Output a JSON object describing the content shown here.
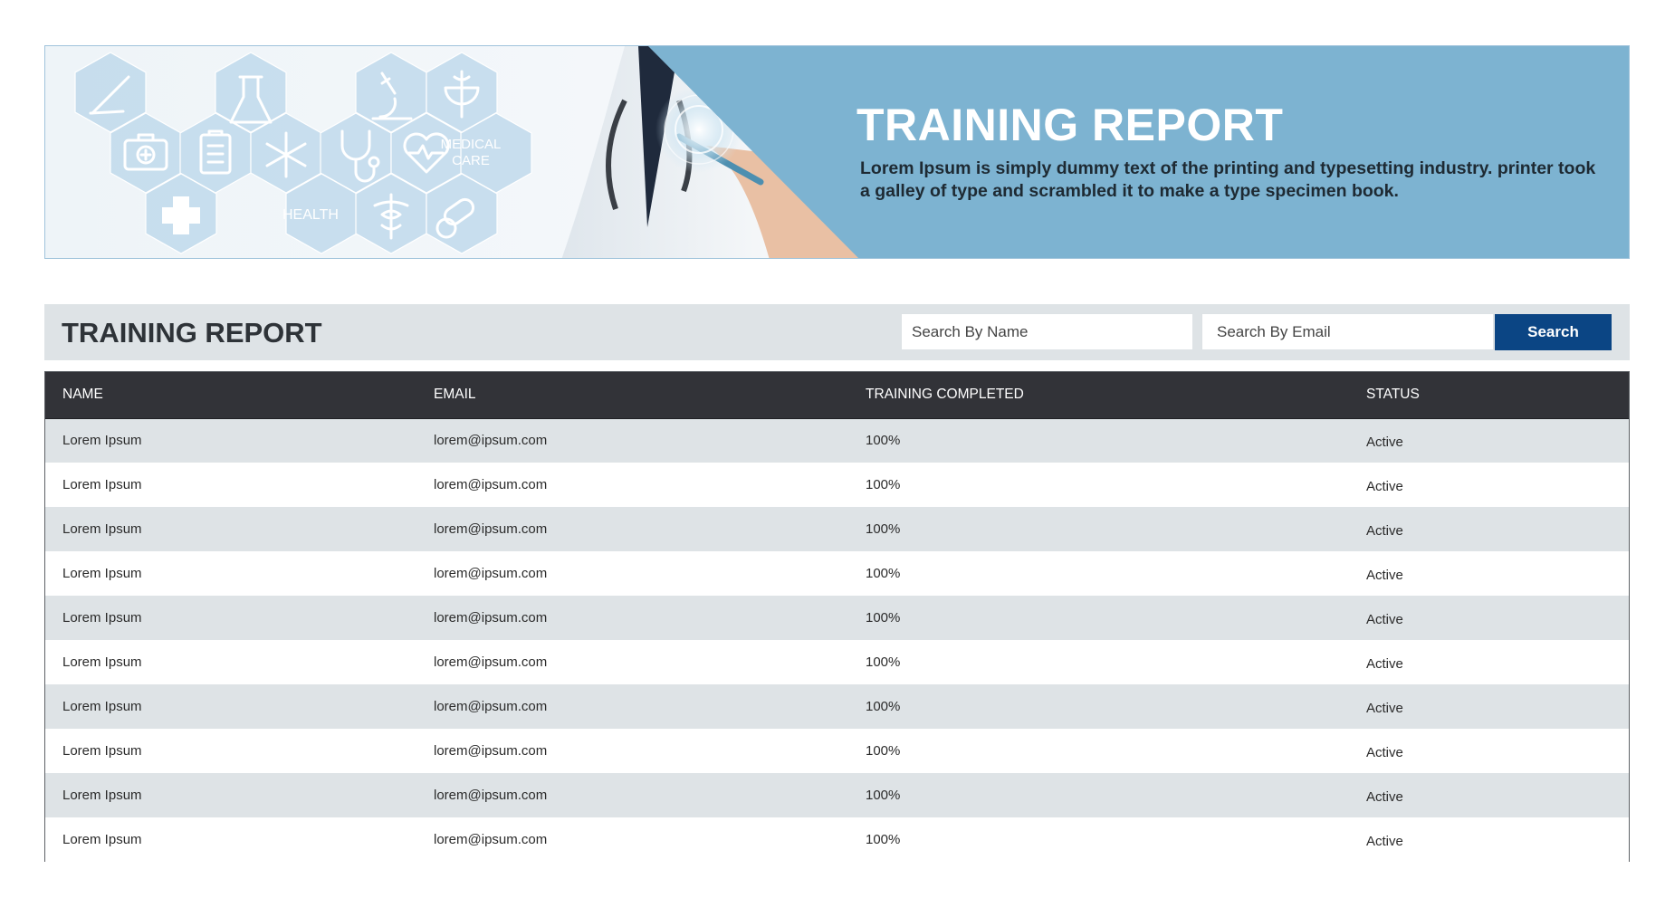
{
  "banner": {
    "title": "TRAINING REPORT",
    "description": "Lorem Ipsum is simply dummy text of the printing and typesetting industry. printer took a galley of type and scrambled it to make a type specimen book.",
    "hex_labels": {
      "health": "HEALTH",
      "medical": "MEDICAL",
      "care": "CARE"
    },
    "accent_color": "#7db3d1"
  },
  "report": {
    "title": "TRAINING REPORT",
    "search_name_placeholder": "Search By Name",
    "search_email_placeholder": "Search By Email",
    "search_label": "Search",
    "button_color": "#0b4584"
  },
  "table": {
    "headers": [
      "NAME",
      "EMAIL",
      "TRAINING COMPLETED",
      "STATUS"
    ],
    "rows": [
      {
        "name": "Lorem Ipsum",
        "email": "lorem@ipsum.com",
        "completed": "100%",
        "status": "Active"
      },
      {
        "name": "Lorem Ipsum",
        "email": "lorem@ipsum.com",
        "completed": "100%",
        "status": "Active"
      },
      {
        "name": "Lorem Ipsum",
        "email": "lorem@ipsum.com",
        "completed": "100%",
        "status": "Active"
      },
      {
        "name": "Lorem Ipsum",
        "email": "lorem@ipsum.com",
        "completed": "100%",
        "status": "Active"
      },
      {
        "name": "Lorem Ipsum",
        "email": "lorem@ipsum.com",
        "completed": "100%",
        "status": "Active"
      },
      {
        "name": "Lorem Ipsum",
        "email": "lorem@ipsum.com",
        "completed": "100%",
        "status": "Active"
      },
      {
        "name": "Lorem Ipsum",
        "email": "lorem@ipsum.com",
        "completed": "100%",
        "status": "Active"
      },
      {
        "name": "Lorem Ipsum",
        "email": "lorem@ipsum.com",
        "completed": "100%",
        "status": "Active"
      },
      {
        "name": "Lorem Ipsum",
        "email": "lorem@ipsum.com",
        "completed": "100%",
        "status": "Active"
      },
      {
        "name": "Lorem Ipsum",
        "email": "lorem@ipsum.com",
        "completed": "100%",
        "status": "Active"
      }
    ]
  }
}
